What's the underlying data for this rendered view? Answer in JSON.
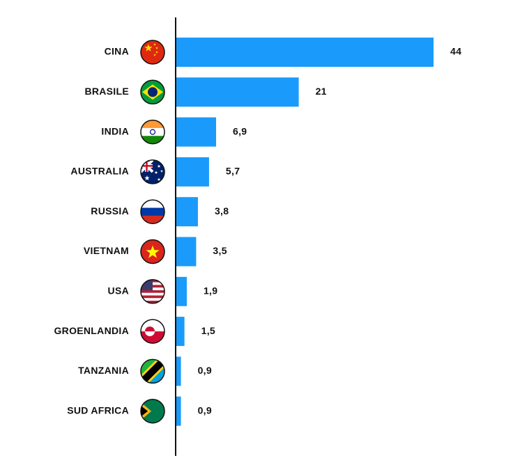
{
  "chart_data": {
    "type": "bar",
    "orientation": "horizontal",
    "categories": [
      "CINA",
      "BRASILE",
      "INDIA",
      "AUSTRALIA",
      "RUSSIA",
      "VIETNAM",
      "USA",
      "GROENLANDIA",
      "TANZANIA",
      "SUD AFRICA"
    ],
    "values": [
      44,
      21,
      6.9,
      5.7,
      3.8,
      3.5,
      1.9,
      1.5,
      0.9,
      0.9
    ],
    "value_labels": [
      "44",
      "21",
      "6,9",
      "5,7",
      "3,8",
      "3,5",
      "1,9",
      "1,5",
      "0,9",
      "0,9"
    ],
    "color": "#1a9bfc"
  }
}
